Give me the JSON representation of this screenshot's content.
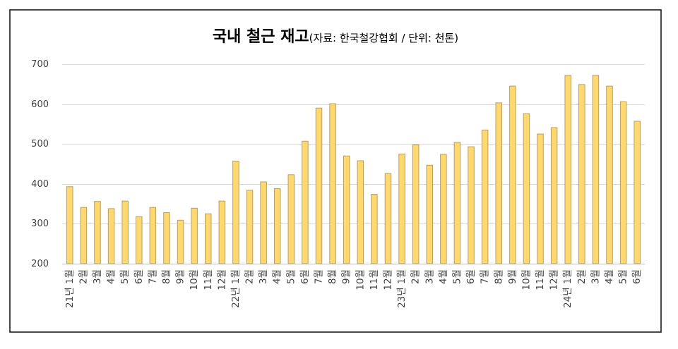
{
  "chart_data": {
    "type": "bar",
    "title": "국내 철근 재고",
    "subtitle": "(자료: 한국철강협회 / 단위: 천톤)",
    "categories": [
      "21년 1월",
      "2월",
      "3월",
      "4월",
      "5월",
      "6월",
      "7월",
      "8월",
      "9월",
      "10월",
      "11월",
      "12월",
      "22년 1월",
      "2월",
      "3월",
      "4월",
      "5월",
      "6월",
      "7월",
      "8월",
      "9월",
      "10월",
      "11월",
      "12월",
      "23년 1월",
      "2월",
      "3월",
      "4월",
      "5월",
      "6월",
      "7월",
      "8월",
      "9월",
      "10월",
      "11월",
      "12월",
      "24년 1월",
      "2월",
      "3월",
      "4월",
      "5월",
      "6월"
    ],
    "values": [
      393,
      341,
      356,
      338,
      357,
      318,
      341,
      328,
      309,
      339,
      325,
      357,
      457,
      384,
      405,
      388,
      423,
      507,
      590,
      601,
      470,
      458,
      374,
      426,
      475,
      498,
      447,
      474,
      504,
      493,
      535,
      603,
      645,
      576,
      525,
      541,
      672,
      649,
      672,
      645,
      606,
      557
    ],
    "ylim": [
      200,
      700
    ],
    "yticks": [
      200,
      300,
      400,
      500,
      600,
      700
    ],
    "grid": true
  },
  "colors": {
    "bar_fill": "#FFD970",
    "bar_stroke": "#B89E62",
    "gridline": "#D9D9D9",
    "axis": "#BFBFBF",
    "border": "#1A1A1A",
    "tick_text": "#404040",
    "title_text": "#000000"
  }
}
